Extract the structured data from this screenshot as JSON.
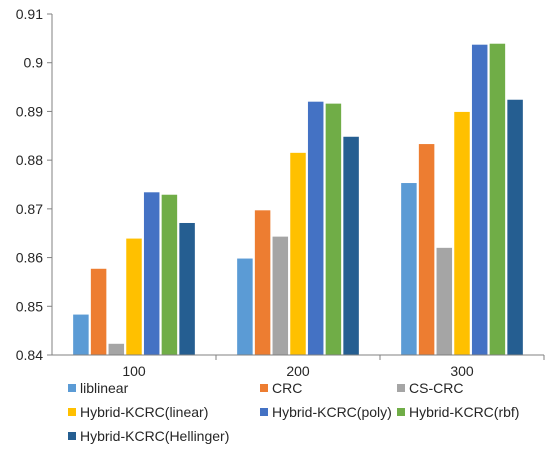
{
  "chart_data": {
    "type": "bar",
    "title": "",
    "xlabel": "",
    "ylabel": "",
    "categories": [
      "100",
      "200",
      "300"
    ],
    "ylim": [
      0.84,
      0.91
    ],
    "yticks": [
      "0.84",
      "0.85",
      "0.86",
      "0.87",
      "0.88",
      "0.89",
      "0.9",
      "0.91"
    ],
    "grid": false,
    "legend_position": "bottom",
    "series": [
      {
        "name": "liblinear",
        "color": "#5b9bd5",
        "values": [
          0.8483,
          0.8598,
          0.8753
        ]
      },
      {
        "name": "CRC",
        "color": "#ed7d31",
        "values": [
          0.8577,
          0.8697,
          0.8833
        ]
      },
      {
        "name": "CS-CRC",
        "color": "#a5a5a5",
        "values": [
          0.8423,
          0.8643,
          0.862
        ]
      },
      {
        "name": "Hybrid-KCRC(linear)",
        "color": "#ffc000",
        "values": [
          0.8639,
          0.8815,
          0.8899
        ]
      },
      {
        "name": "Hybrid-KCRC(poly)",
        "color": "#4472c4",
        "values": [
          0.8734,
          0.892,
          0.9037
        ]
      },
      {
        "name": "Hybrid-KCRC(rbf)",
        "color": "#70ad47",
        "values": [
          0.8729,
          0.8916,
          0.9039
        ]
      },
      {
        "name": "Hybrid-KCRC(Hellinger)",
        "color": "#255e91",
        "values": [
          0.8671,
          0.8848,
          0.8924
        ]
      }
    ]
  }
}
